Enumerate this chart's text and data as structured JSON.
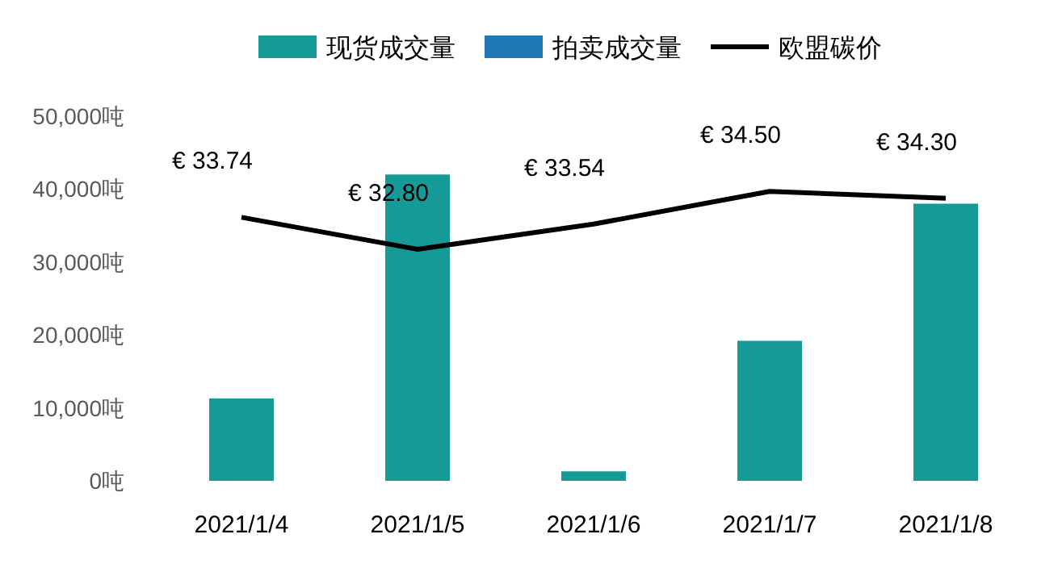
{
  "chart_data": {
    "type": "bar",
    "categories": [
      "2021/1/4",
      "2021/1/5",
      "2021/1/6",
      "2021/1/7",
      "2021/1/8"
    ],
    "series": [
      {
        "name": "现货成交量",
        "color": "#169a98",
        "values": [
          11300,
          42000,
          1300,
          19200,
          38000
        ]
      },
      {
        "name": "拍卖成交量",
        "color": "#1f78b4",
        "values": [
          null,
          null,
          null,
          null,
          null
        ]
      },
      {
        "name": "欧盟碳价",
        "type": "line",
        "axis": "y2",
        "color": "#000000",
        "values": [
          33.74,
          32.8,
          33.54,
          34.5,
          34.3
        ],
        "value_labels": [
          "€ 33.74",
          "€ 32.80",
          "€ 33.54",
          "€ 34.50",
          "€ 34.30"
        ]
      }
    ],
    "ylim": [
      0,
      50000
    ],
    "yticks": [
      {
        "value": 0,
        "label": "0吨"
      },
      {
        "value": 10000,
        "label": "10,000吨"
      },
      {
        "value": 20000,
        "label": "20,000吨"
      },
      {
        "value": 30000,
        "label": "30,000吨"
      },
      {
        "value": 40000,
        "label": "40,000吨"
      },
      {
        "value": 50000,
        "label": "50,000吨"
      }
    ],
    "legend": "top"
  }
}
